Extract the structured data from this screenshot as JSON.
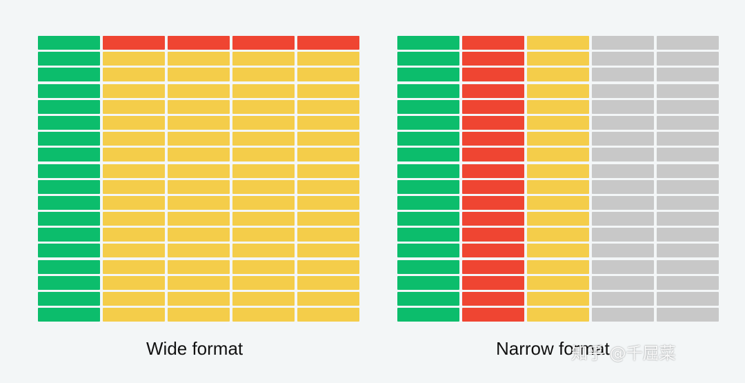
{
  "colors": {
    "id": "#0cbd6c",
    "header": "#ef4532",
    "value": "#f4cd4a",
    "key": "#ef4532",
    "empty": "#c8c8c8",
    "background": "#f3f6f7"
  },
  "wide": {
    "caption": "Wide format",
    "rows": 18,
    "columns": [
      "id",
      "header",
      "header",
      "header",
      "header"
    ],
    "header_row_only": true
  },
  "narrow": {
    "caption": "Narrow format",
    "rows": 18,
    "columns": [
      "id",
      "key",
      "value",
      "empty",
      "empty"
    ]
  },
  "watermark": {
    "text": "知乎 @千屈菜"
  }
}
